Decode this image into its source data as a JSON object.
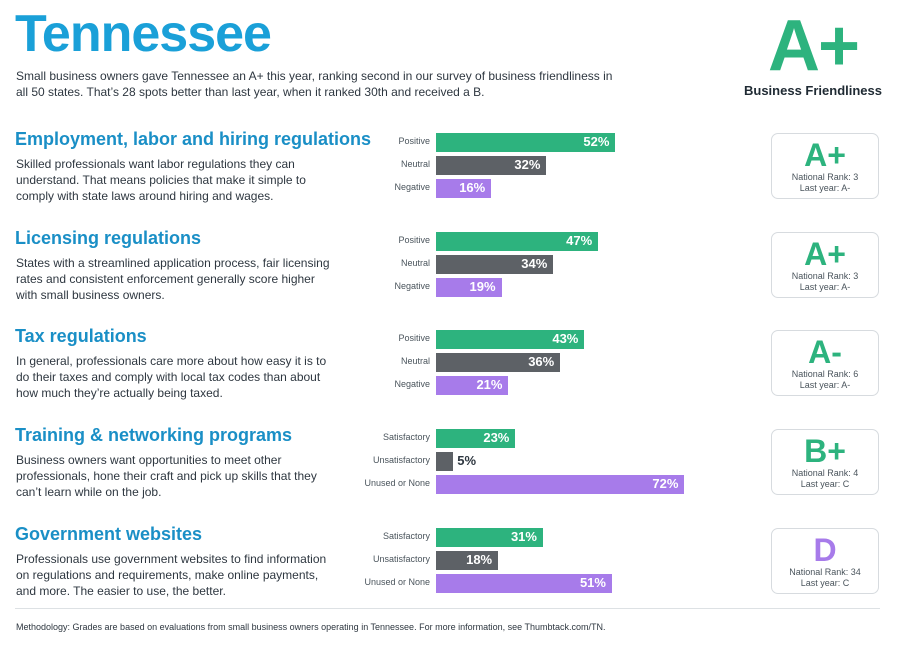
{
  "header": {
    "state": "Tennessee",
    "intro": "Small business owners gave Tennessee an A+ this year, ranking second in our survey of business friendliness in all 50 states. That’s 28 spots better than last year, when it ranked 30th and received a B.",
    "overall_grade": "A+",
    "overall_label": "Business Friendliness"
  },
  "chart_data": [
    {
      "type": "bar",
      "title": "Employment, labor and hiring regulations",
      "description": "Skilled professionals want labor regulations they can understand. That means policies that make it simple to comply with state laws around hiring and wages.",
      "categories": [
        "Positive",
        "Neutral",
        "Negative"
      ],
      "values": [
        52,
        32,
        16
      ],
      "value_labels": [
        "52%",
        "32%",
        "16%"
      ],
      "colors": [
        "#2db37e",
        "#5d6166",
        "#a77bea"
      ],
      "xlim": [
        0,
        100
      ],
      "grade": "A+",
      "national_rank": "National Rank: 3",
      "last_year": "Last year: A-"
    },
    {
      "type": "bar",
      "title": "Licensing regulations",
      "description": "States with a streamlined application process, fair licensing rates and consistent enforcement generally score higher with small business owners.",
      "categories": [
        "Positive",
        "Neutral",
        "Negative"
      ],
      "values": [
        47,
        34,
        19
      ],
      "value_labels": [
        "47%",
        "34%",
        "19%"
      ],
      "colors": [
        "#2db37e",
        "#5d6166",
        "#a77bea"
      ],
      "xlim": [
        0,
        100
      ],
      "grade": "A+",
      "national_rank": "National Rank: 3",
      "last_year": "Last year: A-"
    },
    {
      "type": "bar",
      "title": "Tax regulations",
      "description": "In general, professionals care more about how easy it is to do their taxes and comply with local tax codes than about how much they’re actually being taxed.",
      "categories": [
        "Positive",
        "Neutral",
        "Negative"
      ],
      "values": [
        43,
        36,
        21
      ],
      "value_labels": [
        "43%",
        "36%",
        "21%"
      ],
      "colors": [
        "#2db37e",
        "#5d6166",
        "#a77bea"
      ],
      "xlim": [
        0,
        100
      ],
      "grade": "A-",
      "national_rank": "National Rank: 6",
      "last_year": "Last year: A-"
    },
    {
      "type": "bar",
      "title": "Training & networking programs",
      "description": "Business owners want opportunities to meet other professionals, hone their craft and pick up skills that they can’t learn while on the job.",
      "categories": [
        "Satisfactory",
        "Unsatisfactory",
        "Unused or None"
      ],
      "values": [
        23,
        5,
        72
      ],
      "value_labels": [
        "23%",
        "5%",
        "72%"
      ],
      "colors": [
        "#2db37e",
        "#5d6166",
        "#a77bea"
      ],
      "xlim": [
        0,
        100
      ],
      "grade": "B+",
      "national_rank": "National Rank: 4",
      "last_year": "Last year: C"
    },
    {
      "type": "bar",
      "title": "Government websites",
      "description": "Professionals use government websites to find information on regulations and requirements, make online payments, and more. The easier to use, the better.",
      "categories": [
        "Satisfactory",
        "Unsatisfactory",
        "Unused or None"
      ],
      "values": [
        31,
        18,
        51
      ],
      "value_labels": [
        "31%",
        "18%",
        "51%"
      ],
      "colors": [
        "#2db37e",
        "#5d6166",
        "#a77bea"
      ],
      "xlim": [
        0,
        100
      ],
      "grade": "D",
      "grade_color": "#a77bea",
      "national_rank": "National Rank: 34",
      "last_year": "Last year: C"
    }
  ],
  "footer": {
    "methodology": "Methodology: Grades are based on evaluations from small business owners operating in Tennessee. For more information, see Thumbtack.com/TN."
  }
}
